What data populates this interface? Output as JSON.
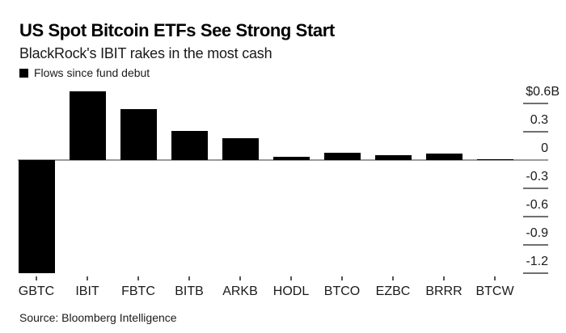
{
  "header": {
    "title": "US Spot Bitcoin ETFs See Strong Start",
    "subtitle": "BlackRock's IBIT rakes in the most cash"
  },
  "legend": {
    "label": "Flows since fund debut",
    "swatch_color": "#000000"
  },
  "chart_data": {
    "type": "bar",
    "title": "US Spot Bitcoin ETFs See Strong Start",
    "subtitle": "BlackRock's IBIT rakes in the most cash",
    "series_label": "Flows since fund debut",
    "unit": "USD billions",
    "categories": [
      "GBTC",
      "IBIT",
      "FBTC",
      "BITB",
      "ARKB",
      "HODL",
      "BTCO",
      "EZBC",
      "BRRR",
      "BTCW"
    ],
    "values": [
      -1.2,
      0.73,
      0.54,
      0.31,
      0.23,
      0.03,
      0.08,
      0.05,
      0.07,
      0.01
    ],
    "y_axis": {
      "side": "right",
      "tick_labels": [
        "$0.6B",
        "0.3",
        "0",
        "-0.3",
        "-0.6",
        "-0.9",
        "-1.2"
      ],
      "tick_values": [
        0.6,
        0.3,
        0,
        -0.3,
        -0.6,
        -0.9,
        -1.2
      ],
      "ylim": [
        -1.3,
        0.75
      ]
    },
    "xlabel": "",
    "ylabel": "",
    "grid": false,
    "legend_position": "top-left",
    "bar_color": "#000000",
    "axis_line_color": "#9a9a9a",
    "tick_color": "#707070",
    "text_color": "#1a1a1a"
  },
  "source": {
    "label": "Source: Bloomberg Intelligence"
  }
}
